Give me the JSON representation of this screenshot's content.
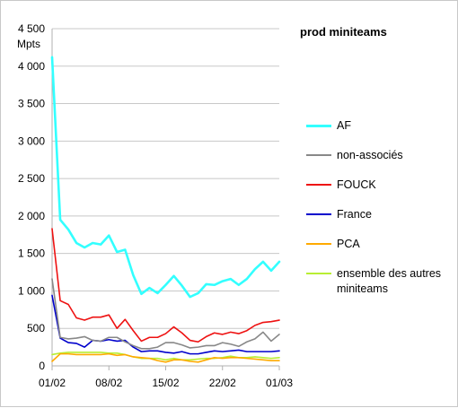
{
  "chart_data": {
    "type": "line",
    "title": "prod miniteams",
    "ylabel": "Mpts",
    "xlabel": "",
    "ylim": [
      0,
      4500
    ],
    "yticks": [
      0,
      500,
      1000,
      1500,
      2000,
      2500,
      3000,
      3500,
      4000,
      4500
    ],
    "ytick_labels": [
      "0",
      "500",
      "1 000",
      "1 500",
      "2 000",
      "2 500",
      "3 000",
      "3 500",
      "4 000",
      "4 500"
    ],
    "xtick_labels": [
      "01/02",
      "08/02",
      "15/02",
      "22/02",
      "01/03"
    ],
    "xtick_index": [
      0,
      7,
      14,
      21,
      28
    ],
    "grid": "horizontal",
    "legend_position": "right",
    "series": [
      {
        "name": "AF",
        "color": "#33ffff",
        "width": 2.6,
        "values": [
          4120,
          1950,
          1820,
          1640,
          1580,
          1640,
          1620,
          1740,
          1520,
          1550,
          1210,
          960,
          1040,
          970,
          1080,
          1200,
          1070,
          920,
          970,
          1090,
          1080,
          1130,
          1160,
          1080,
          1160,
          1290,
          1390,
          1270,
          1390
        ]
      },
      {
        "name": "non-associés",
        "color": "#888888",
        "width": 1.6,
        "values": [
          1160,
          380,
          360,
          370,
          390,
          340,
          330,
          380,
          380,
          320,
          270,
          230,
          230,
          250,
          310,
          310,
          280,
          240,
          250,
          270,
          270,
          310,
          290,
          260,
          320,
          360,
          450,
          330,
          420
        ]
      },
      {
        "name": "FOUCK",
        "color": "#ee1111",
        "width": 1.6,
        "values": [
          1830,
          870,
          820,
          640,
          610,
          650,
          650,
          680,
          500,
          620,
          470,
          330,
          380,
          380,
          430,
          520,
          440,
          340,
          320,
          390,
          440,
          420,
          450,
          430,
          470,
          540,
          580,
          590,
          610
        ]
      },
      {
        "name": "France",
        "color": "#0000cc",
        "width": 1.6,
        "values": [
          940,
          370,
          310,
          300,
          250,
          340,
          330,
          350,
          330,
          340,
          250,
          190,
          200,
          200,
          180,
          170,
          190,
          160,
          160,
          180,
          200,
          190,
          200,
          210,
          190,
          190,
          190,
          190,
          200
        ]
      },
      {
        "name": "PCA",
        "color": "#ffaa00",
        "width": 1.6,
        "values": [
          60,
          160,
          160,
          150,
          150,
          150,
          150,
          160,
          140,
          150,
          120,
          110,
          100,
          70,
          50,
          80,
          80,
          60,
          50,
          80,
          110,
          100,
          110,
          110,
          100,
          90,
          80,
          70,
          70
        ]
      },
      {
        "name": "ensemble des autres miniteams",
        "color": "#b8ee33",
        "width": 1.6,
        "values": [
          150,
          170,
          180,
          180,
          180,
          180,
          180,
          170,
          170,
          150,
          120,
          100,
          100,
          100,
          80,
          100,
          80,
          80,
          90,
          100,
          100,
          110,
          130,
          110,
          110,
          120,
          110,
          100,
          110
        ]
      }
    ]
  }
}
